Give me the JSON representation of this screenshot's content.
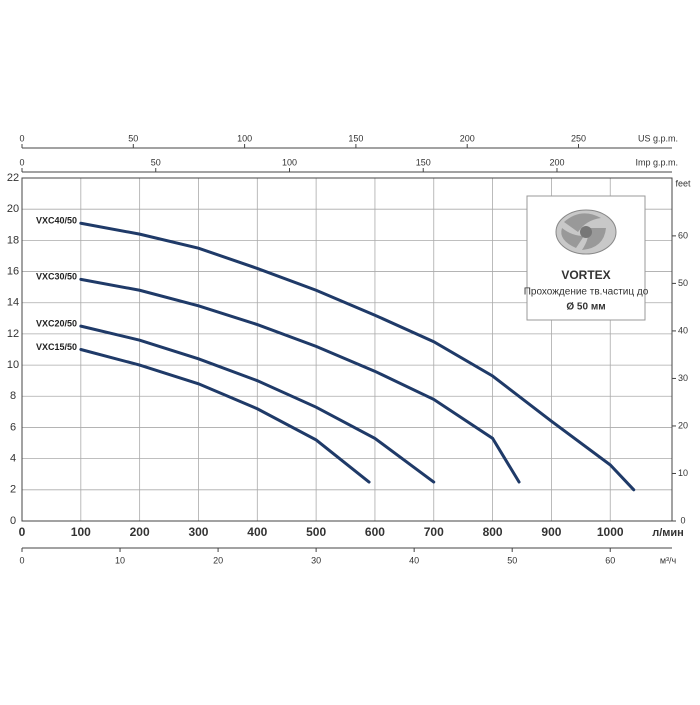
{
  "chart_data": {
    "type": "line",
    "xlabel": "л/мин",
    "xlim": [
      0,
      1105
    ],
    "xticks": [
      0,
      100,
      200,
      300,
      400,
      500,
      600,
      700,
      800,
      900,
      1000
    ],
    "ylim": [
      0,
      22
    ],
    "yticks": [
      0,
      2,
      4,
      6,
      8,
      10,
      12,
      14,
      16,
      18,
      20,
      22
    ],
    "y2label": "feet",
    "y2lim": [
      0,
      72.18
    ],
    "y2ticks": [
      0,
      10,
      20,
      30,
      40,
      50,
      60
    ],
    "top_axes": [
      {
        "label": "US g.p.m.",
        "lim": [
          0,
          292
        ],
        "ticks": [
          0,
          50,
          100,
          150,
          200,
          250
        ]
      },
      {
        "label": "Imp g.p.m.",
        "lim": [
          0,
          243
        ],
        "ticks": [
          0,
          50,
          100,
          150,
          200
        ]
      }
    ],
    "bottom_axis2": {
      "label": "м³/ч",
      "lim": [
        0,
        66.3
      ],
      "ticks": [
        0,
        10,
        20,
        30,
        40,
        50,
        60
      ]
    },
    "grid": true,
    "series": [
      {
        "name": "VXC40/50",
        "color": "#1f3a68",
        "x": [
          100,
          200,
          300,
          400,
          500,
          600,
          700,
          800,
          900,
          1000,
          1040
        ],
        "values": [
          19.1,
          18.4,
          17.5,
          16.2,
          14.8,
          13.2,
          11.5,
          9.3,
          6.4,
          3.6,
          2.0
        ]
      },
      {
        "name": "VXC30/50",
        "color": "#1f3a68",
        "x": [
          100,
          200,
          300,
          400,
          500,
          600,
          700,
          800,
          845
        ],
        "values": [
          15.5,
          14.8,
          13.8,
          12.6,
          11.2,
          9.6,
          7.8,
          5.3,
          2.5
        ]
      },
      {
        "name": "VXC20/50",
        "color": "#1f3a68",
        "x": [
          100,
          200,
          300,
          400,
          500,
          600,
          700
        ],
        "values": [
          12.5,
          11.6,
          10.4,
          9.0,
          7.3,
          5.3,
          2.5
        ]
      },
      {
        "name": "VXC15/50",
        "color": "#1f3a68",
        "x": [
          100,
          200,
          300,
          400,
          500,
          590
        ],
        "values": [
          11.0,
          10.0,
          8.8,
          7.2,
          5.2,
          2.5
        ]
      }
    ],
    "info_box": {
      "title": "VORTEX",
      "line1": "Прохождение тв.частиц до",
      "line2": "Ø 50 мм"
    }
  }
}
